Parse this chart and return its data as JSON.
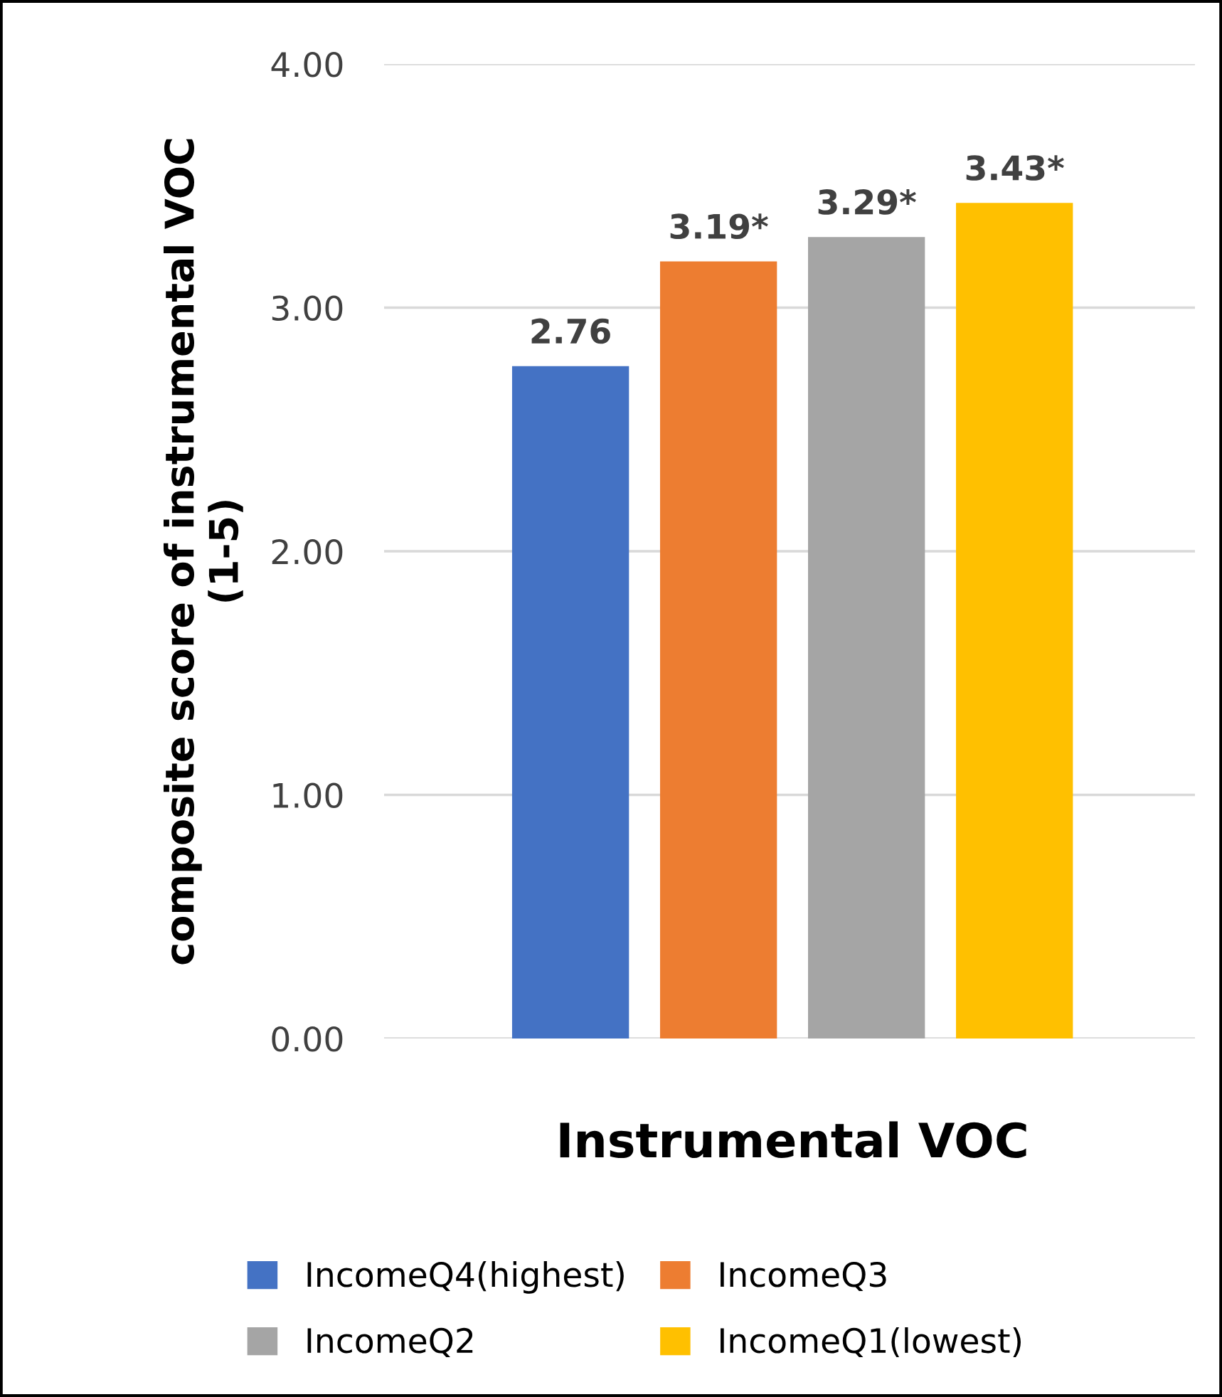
{
  "chart_data": {
    "type": "bar",
    "stacked": true,
    "xlabel": "Instrumental VOC",
    "ylabel": "composite score of instrumental VOC\n(1-5)",
    "categories": [
      null,
      null,
      null,
      null
    ],
    "series": [
      {
        "name": "IncomeQ4(highest)",
        "color": "#4472c4",
        "values": [
          2.76,
          null,
          null,
          null
        ],
        "value_labels": [
          "2.76",
          null,
          null,
          null
        ]
      },
      {
        "name": "IncomeQ3",
        "color": "#ed7d31",
        "values": [
          null,
          3.19,
          null,
          null
        ],
        "value_labels": [
          null,
          "3.19*",
          null,
          null
        ]
      },
      {
        "name": "IncomeQ2",
        "color": "#a5a5a5",
        "values": [
          null,
          null,
          3.29,
          null
        ],
        "value_labels": [
          null,
          null,
          "3.29*",
          null
        ]
      },
      {
        "name": "IncomeQ1(lowest)",
        "color": "#ffc000",
        "values": [
          null,
          null,
          null,
          3.43
        ],
        "value_labels": [
          null,
          null,
          null,
          "3.43*"
        ]
      }
    ],
    "ylim": [
      0,
      4
    ],
    "yticks": [
      {
        "value": 0,
        "label": "0.00"
      },
      {
        "value": 1,
        "label": "1.00"
      },
      {
        "value": 2,
        "label": "2.00"
      },
      {
        "value": 3,
        "label": "3.00"
      },
      {
        "value": 4,
        "label": "4.00"
      }
    ],
    "grid": "y",
    "legend": "bottom"
  }
}
